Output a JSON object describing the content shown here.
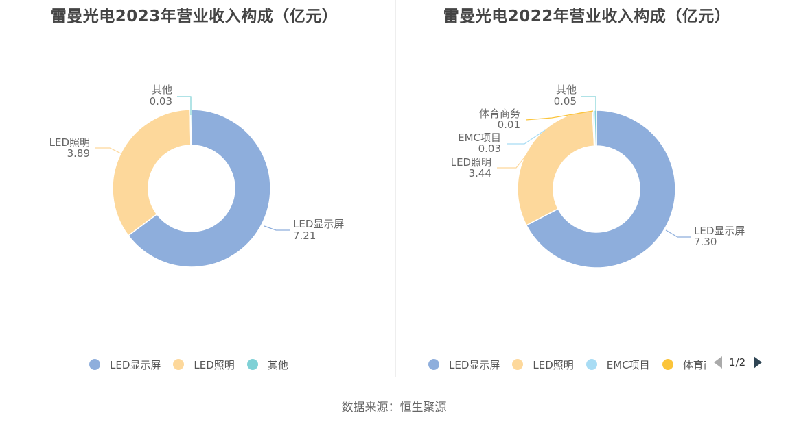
{
  "colors": {
    "led_display": "#8eaedc",
    "led_lighting": "#fdd89b",
    "other": "#7fd1d6",
    "emc": "#a8dcf4",
    "sports": "#fbc43a",
    "pager_active": "#2f4554",
    "pager_inactive": "#aaaaaa"
  },
  "left": {
    "title": "雷曼光电2023年营业收入构成（亿元）",
    "legend": [
      {
        "label": "LED显示屏",
        "color": "#8eaedc"
      },
      {
        "label": "LED照明",
        "color": "#fdd89b"
      },
      {
        "label": "其他",
        "color": "#7fd1d6"
      }
    ]
  },
  "right": {
    "title": "雷曼光电2022年营业收入构成（亿元）",
    "legend": [
      {
        "label": "LED显示屏",
        "color": "#8eaedc"
      },
      {
        "label": "LED照明",
        "color": "#fdd89b"
      },
      {
        "label": "EMC项目",
        "color": "#a8dcf4"
      },
      {
        "label": "体育商务",
        "color": "#fbc43a"
      }
    ],
    "pager": {
      "text": "1/2"
    }
  },
  "source": "数据来源：恒生聚源",
  "chart_data": [
    {
      "type": "pie",
      "title": "雷曼光电2023年营业收入构成（亿元）",
      "categories": [
        "LED显示屏",
        "LED照明",
        "其他"
      ],
      "values": [
        7.21,
        3.89,
        0.03
      ],
      "colors": [
        "#8eaedc",
        "#fdd89b",
        "#7fd1d6"
      ],
      "donut": true,
      "legend_position": "bottom"
    },
    {
      "type": "pie",
      "title": "雷曼光电2022年营业收入构成（亿元）",
      "categories": [
        "LED显示屏",
        "LED照明",
        "EMC项目",
        "体育商务",
        "其他"
      ],
      "values": [
        7.3,
        3.44,
        0.03,
        0.01,
        0.05
      ],
      "colors": [
        "#8eaedc",
        "#fdd89b",
        "#a8dcf4",
        "#fbc43a",
        "#7fd1d6"
      ],
      "donut": true,
      "legend_position": "bottom",
      "legend_page": "1/2"
    }
  ]
}
